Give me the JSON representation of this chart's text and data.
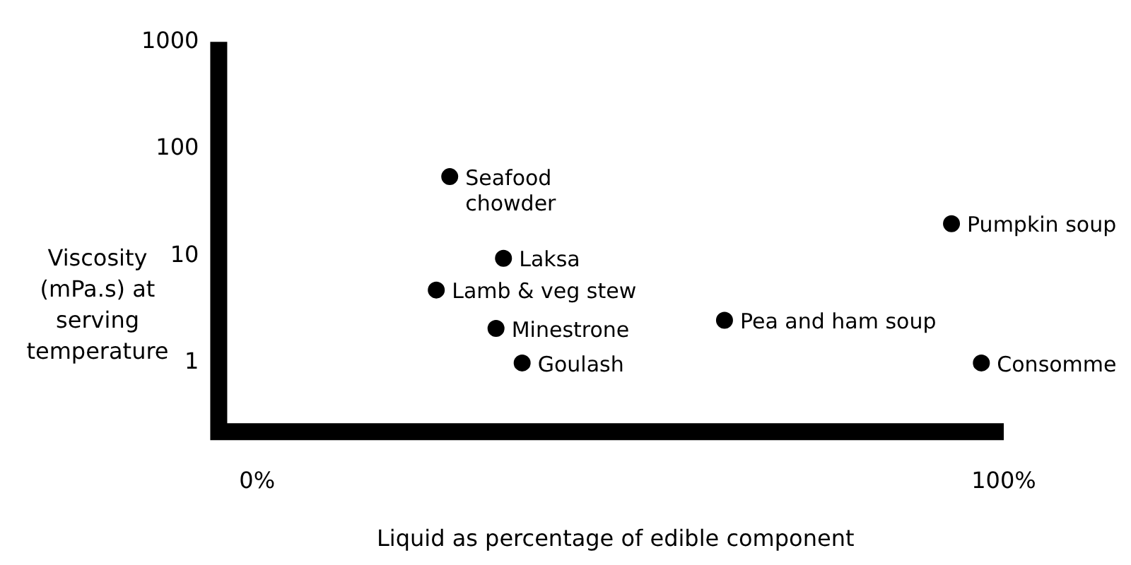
{
  "chart_data": {
    "type": "scatter",
    "xlabel": "Liquid as percentage of edible component",
    "ylabel": "Viscosity\n(mPa.s) at\nserving\ntemperature",
    "x": [
      25.8,
      33,
      24,
      32,
      35.5,
      62.6,
      93,
      97
    ],
    "values": [
      55,
      9.5,
      4.8,
      2.1,
      1,
      2.5,
      20,
      1
    ],
    "color": "#000000",
    "marker": "circle",
    "log": "y",
    "grid": false,
    "xlim": [
      -4,
      100
    ],
    "xticks": [
      {
        "value": 0,
        "label": "0%"
      },
      {
        "value": 100,
        "label": "100%"
      }
    ],
    "ylim": [
      0.19,
      1000
    ],
    "yticks": [
      1,
      10,
      100,
      1000
    ],
    "annotations": [
      {
        "text": "Seafood\nchowder",
        "x": 25.8,
        "y": 55
      },
      {
        "text": "Laksa",
        "x": 33,
        "y": 9.5
      },
      {
        "text": "Lamb & veg stew",
        "x": 24,
        "y": 4.8
      },
      {
        "text": "Minestrone",
        "x": 32,
        "y": 2.1
      },
      {
        "text": "Goulash",
        "x": 35.5,
        "y": 1
      },
      {
        "text": "Pea and ham soup",
        "x": 62.6,
        "y": 2.5
      },
      {
        "text": "Pumpkin soup",
        "x": 93,
        "y": 20
      },
      {
        "text": "Consomme",
        "x": 97,
        "y": 1
      }
    ]
  }
}
